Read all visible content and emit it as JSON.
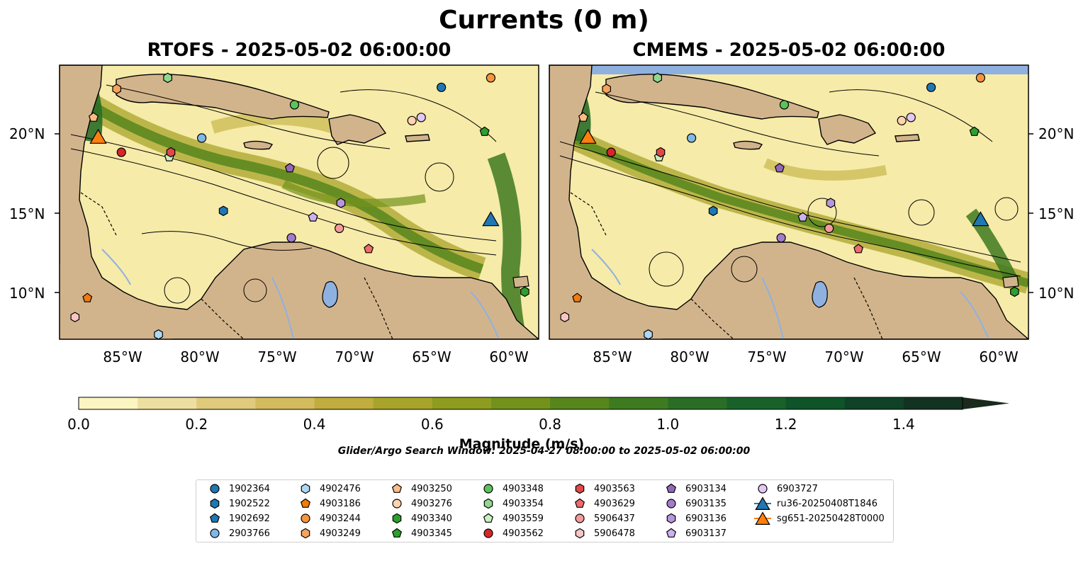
{
  "title": "Currents (0 m)",
  "panels": [
    {
      "title": "RTOFS - 2025-05-02 06:00:00"
    },
    {
      "title": "CMEMS - 2025-05-02 06:00:00"
    }
  ],
  "lat_ticks": [
    "20°N",
    "15°N",
    "10°N"
  ],
  "lon_ticks": [
    "85°W",
    "80°W",
    "75°W",
    "70°W",
    "65°W",
    "60°W"
  ],
  "colorbar": {
    "label": "Magnitude (m/s)",
    "ticks": [
      "0.0",
      "0.2",
      "0.4",
      "0.6",
      "0.8",
      "1.0",
      "1.2",
      "1.4"
    ],
    "colors": [
      "#fbf5c2",
      "#eddfa0",
      "#e0ca7c",
      "#d3bb5e",
      "#c0ad3e",
      "#a8a42b",
      "#8e9c20",
      "#72921c",
      "#56861c",
      "#3e7a20",
      "#2a6e26",
      "#18622a",
      "#0e5428",
      "#0f4226",
      "#133322",
      "#1a2a1c"
    ]
  },
  "search_window": "Glider/Argo Search Window: 2025-04-27 08:00:00 to 2025-05-02 06:00:00",
  "colors": {
    "land": "#d2b48c",
    "lake": "#8fb1e0",
    "ocean_low": "#f6eba8",
    "current_high": "#2f6d18"
  },
  "chart_data": [
    {
      "type": "heatmap",
      "title": "RTOFS - 2025-05-02 06:00:00",
      "variable": "Current magnitude",
      "units": "m/s",
      "depth": "0 m",
      "xlabel": "",
      "ylabel": "",
      "xlim": [
        -89.0,
        -58.0
      ],
      "ylim": [
        7.0,
        24.3
      ],
      "x_ticks": [
        -85,
        -80,
        -75,
        -70,
        -65,
        -60
      ],
      "y_ticks": [
        10,
        15,
        20
      ],
      "clim": [
        0.0,
        1.6
      ],
      "levels": [
        0.0,
        0.1,
        0.2,
        0.3,
        0.4,
        0.5,
        0.6,
        0.7,
        0.8,
        0.9,
        1.0,
        1.1,
        1.2,
        1.3,
        1.4,
        1.5
      ]
    },
    {
      "type": "heatmap",
      "title": "CMEMS - 2025-05-02 06:00:00",
      "variable": "Current magnitude",
      "units": "m/s",
      "depth": "0 m",
      "xlabel": "",
      "ylabel": "",
      "xlim": [
        -89.0,
        -58.0
      ],
      "ylim": [
        7.0,
        24.3
      ],
      "x_ticks": [
        -85,
        -80,
        -75,
        -70,
        -65,
        -60
      ],
      "y_ticks": [
        10,
        15,
        20
      ],
      "clim": [
        0.0,
        1.6
      ],
      "levels": [
        0.0,
        0.1,
        0.2,
        0.3,
        0.4,
        0.5,
        0.6,
        0.7,
        0.8,
        0.9,
        1.0,
        1.1,
        1.2,
        1.3,
        1.4,
        1.5
      ]
    }
  ],
  "platforms": [
    {
      "id": "1902364",
      "marker": "circle",
      "color": "#1f77b4",
      "lon": -64.3,
      "lat": 22.9
    },
    {
      "id": "1902522",
      "marker": "hexagon",
      "color": "#1f77b4",
      "lon": -78.4,
      "lat": 15.1
    },
    {
      "id": "1902692",
      "marker": "pentagon",
      "color": "#1f77b4",
      "lon": 0,
      "lat": 0,
      "hidden": true
    },
    {
      "id": "2903766",
      "marker": "circle",
      "color": "#7fb8e6",
      "lon": -79.8,
      "lat": 19.7
    },
    {
      "id": "4902476",
      "marker": "hexagon",
      "color": "#aed8f2",
      "lon": -82.6,
      "lat": 7.3
    },
    {
      "id": "4903186",
      "marker": "pentagon",
      "color": "#f07b0f",
      "lon": -87.2,
      "lat": 9.6
    },
    {
      "id": "4903244",
      "marker": "circle",
      "color": "#f7953c",
      "lon": -61.1,
      "lat": 23.5
    },
    {
      "id": "4903249",
      "marker": "hexagon",
      "color": "#f7a35b",
      "lon": -85.3,
      "lat": 22.8
    },
    {
      "id": "4903250",
      "marker": "pentagon",
      "color": "#fcbc86",
      "lon": -86.8,
      "lat": 21.0
    },
    {
      "id": "4903276",
      "marker": "circle",
      "color": "#fdd3b0",
      "lon": -66.2,
      "lat": 20.8
    },
    {
      "id": "4903340",
      "marker": "hexagon",
      "color": "#2ca02c",
      "lon": -58.9,
      "lat": 10.0
    },
    {
      "id": "4903345",
      "marker": "pentagon",
      "color": "#2ca02c",
      "lon": -61.5,
      "lat": 20.1
    },
    {
      "id": "4903348",
      "marker": "circle",
      "color": "#5bc35b",
      "lon": -73.8,
      "lat": 21.8
    },
    {
      "id": "4903354",
      "marker": "hexagon",
      "color": "#8fd88f",
      "lon": -82.0,
      "lat": 23.5
    },
    {
      "id": "4903559",
      "marker": "pentagon",
      "color": "#c8f0c0",
      "lon": -81.9,
      "lat": 18.5
    },
    {
      "id": "4903562",
      "marker": "circle",
      "color": "#d62728",
      "lon": -85.0,
      "lat": 18.8
    },
    {
      "id": "4903563",
      "marker": "hexagon",
      "color": "#e24848",
      "lon": -81.8,
      "lat": 18.8
    },
    {
      "id": "4903629",
      "marker": "pentagon",
      "color": "#ef6b6b",
      "lon": -69.0,
      "lat": 12.7
    },
    {
      "id": "5906437",
      "marker": "circle",
      "color": "#f59a9a",
      "lon": -70.9,
      "lat": 14.0
    },
    {
      "id": "5906478",
      "marker": "hexagon",
      "color": "#f8c6c6",
      "lon": -88.0,
      "lat": 8.4
    },
    {
      "id": "6903134",
      "marker": "pentagon",
      "color": "#9467bd",
      "lon": -74.1,
      "lat": 17.8
    },
    {
      "id": "6903135",
      "marker": "circle",
      "color": "#a47acb",
      "lon": -74.0,
      "lat": 13.4
    },
    {
      "id": "6903136",
      "marker": "hexagon",
      "color": "#b796dd",
      "lon": -70.8,
      "lat": 15.6
    },
    {
      "id": "6903137",
      "marker": "pentagon",
      "color": "#ccb1ef",
      "lon": -72.6,
      "lat": 14.7
    },
    {
      "id": "6903727",
      "marker": "circle",
      "color": "#e3c8f4",
      "lon": -65.6,
      "lat": 21.0
    },
    {
      "id": "ru36-20250408T1846",
      "marker": "triangle",
      "color": "#1f77b4",
      "lon": -61.1,
      "lat": 14.6
    },
    {
      "id": "sg651-20250428T0000",
      "marker": "triangle",
      "color": "#ff7f0e",
      "lon": -86.5,
      "lat": 19.8
    }
  ]
}
